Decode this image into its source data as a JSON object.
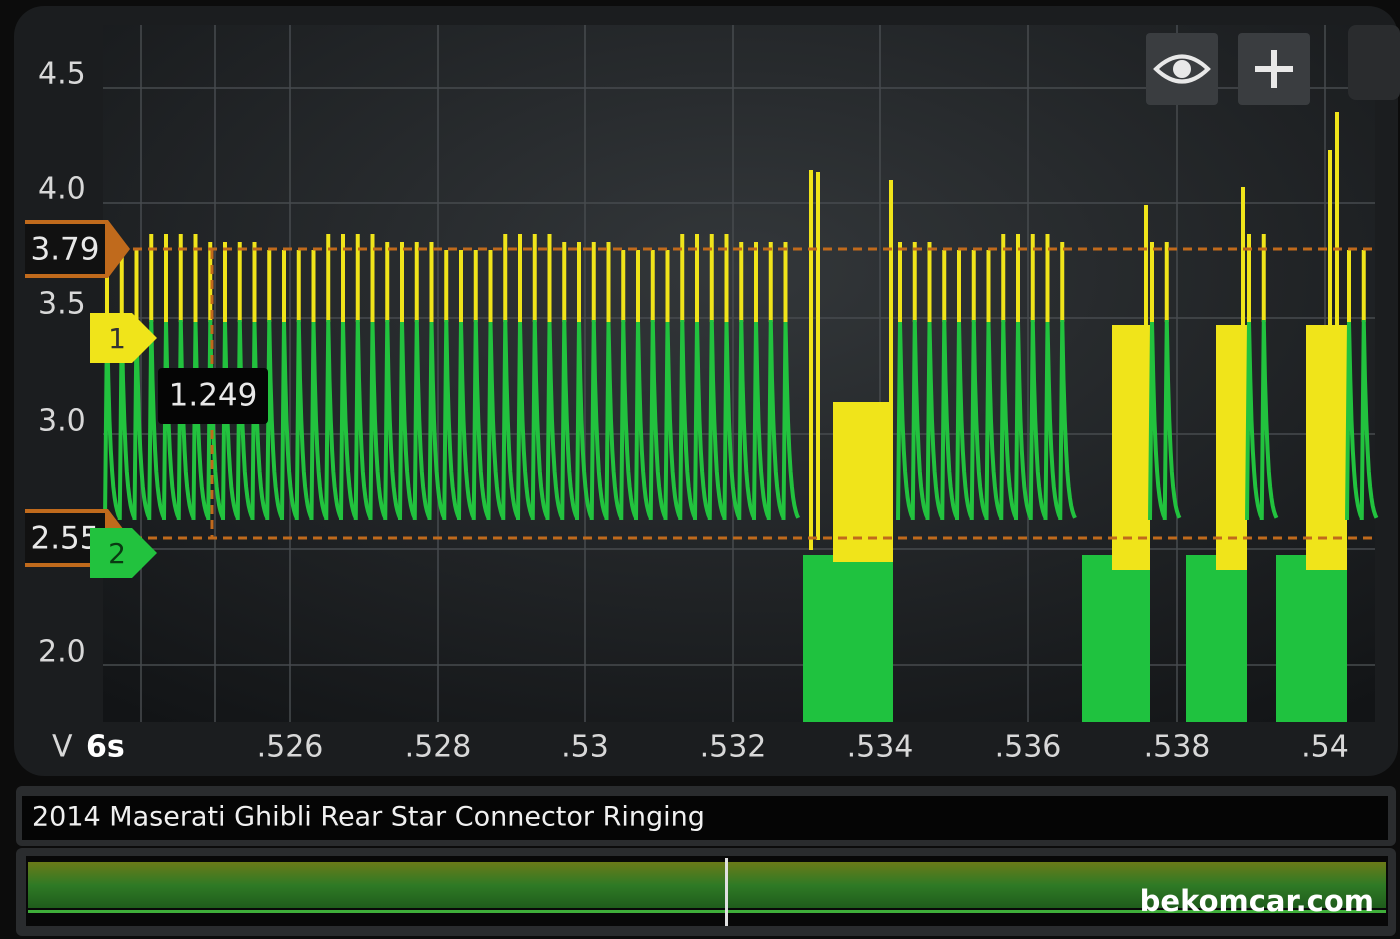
{
  "screen": {
    "y_axis": {
      "unit": "V",
      "ticks": [
        "4.5",
        "4.0",
        "3.5",
        "3.0",
        "2.0"
      ]
    },
    "x_axis": {
      "timebase": "6s",
      "ticks": [
        ".526",
        ".528",
        ".53",
        ".532",
        ".534",
        ".536",
        ".538",
        ".54"
      ]
    },
    "cursors": [
      "3.79",
      "2.55"
    ],
    "channels": [
      "1",
      "2"
    ],
    "measurement": "1.249",
    "title": "2014 Maserati Ghibli Rear Star Connector Ringing",
    "watermark": "bekomcar.com"
  }
}
